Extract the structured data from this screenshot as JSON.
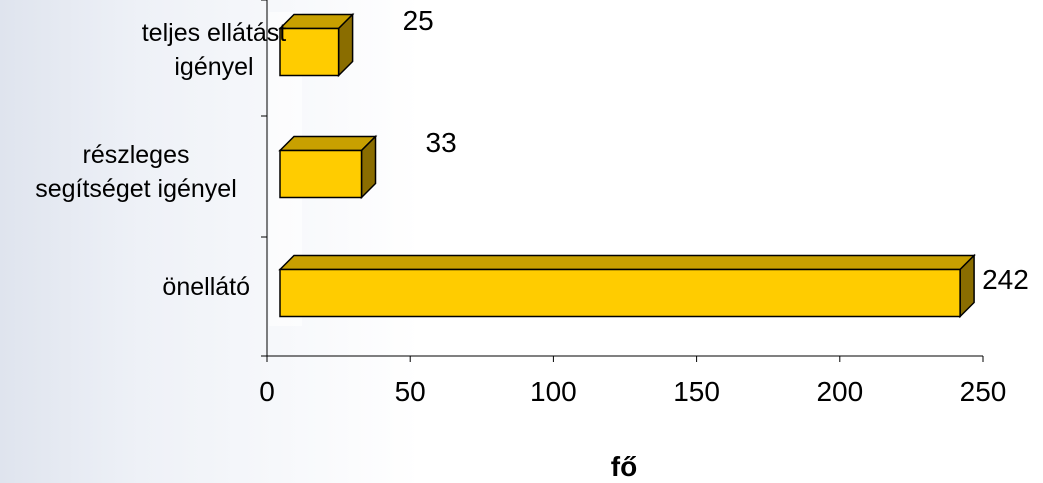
{
  "chart_data": {
    "type": "bar",
    "orientation": "horizontal",
    "style": "3d",
    "categories": [
      [
        "teljes ellátást",
        "igényel"
      ],
      [
        "részleges",
        "segítséget igényel"
      ],
      [
        "önellátó"
      ]
    ],
    "values": [
      25,
      33,
      242
    ],
    "xlabel": "fő",
    "xlim": [
      0,
      250
    ],
    "xticks": [
      "0",
      "50",
      "100",
      "150",
      "200",
      "250"
    ],
    "grid": false,
    "legend": "none",
    "colors": {
      "bar_front": "#ffcc00",
      "bar_top": "#c8a000",
      "bar_side": "#8a6d00",
      "bar_outline": "#000000",
      "floor": "#ffffff"
    }
  }
}
